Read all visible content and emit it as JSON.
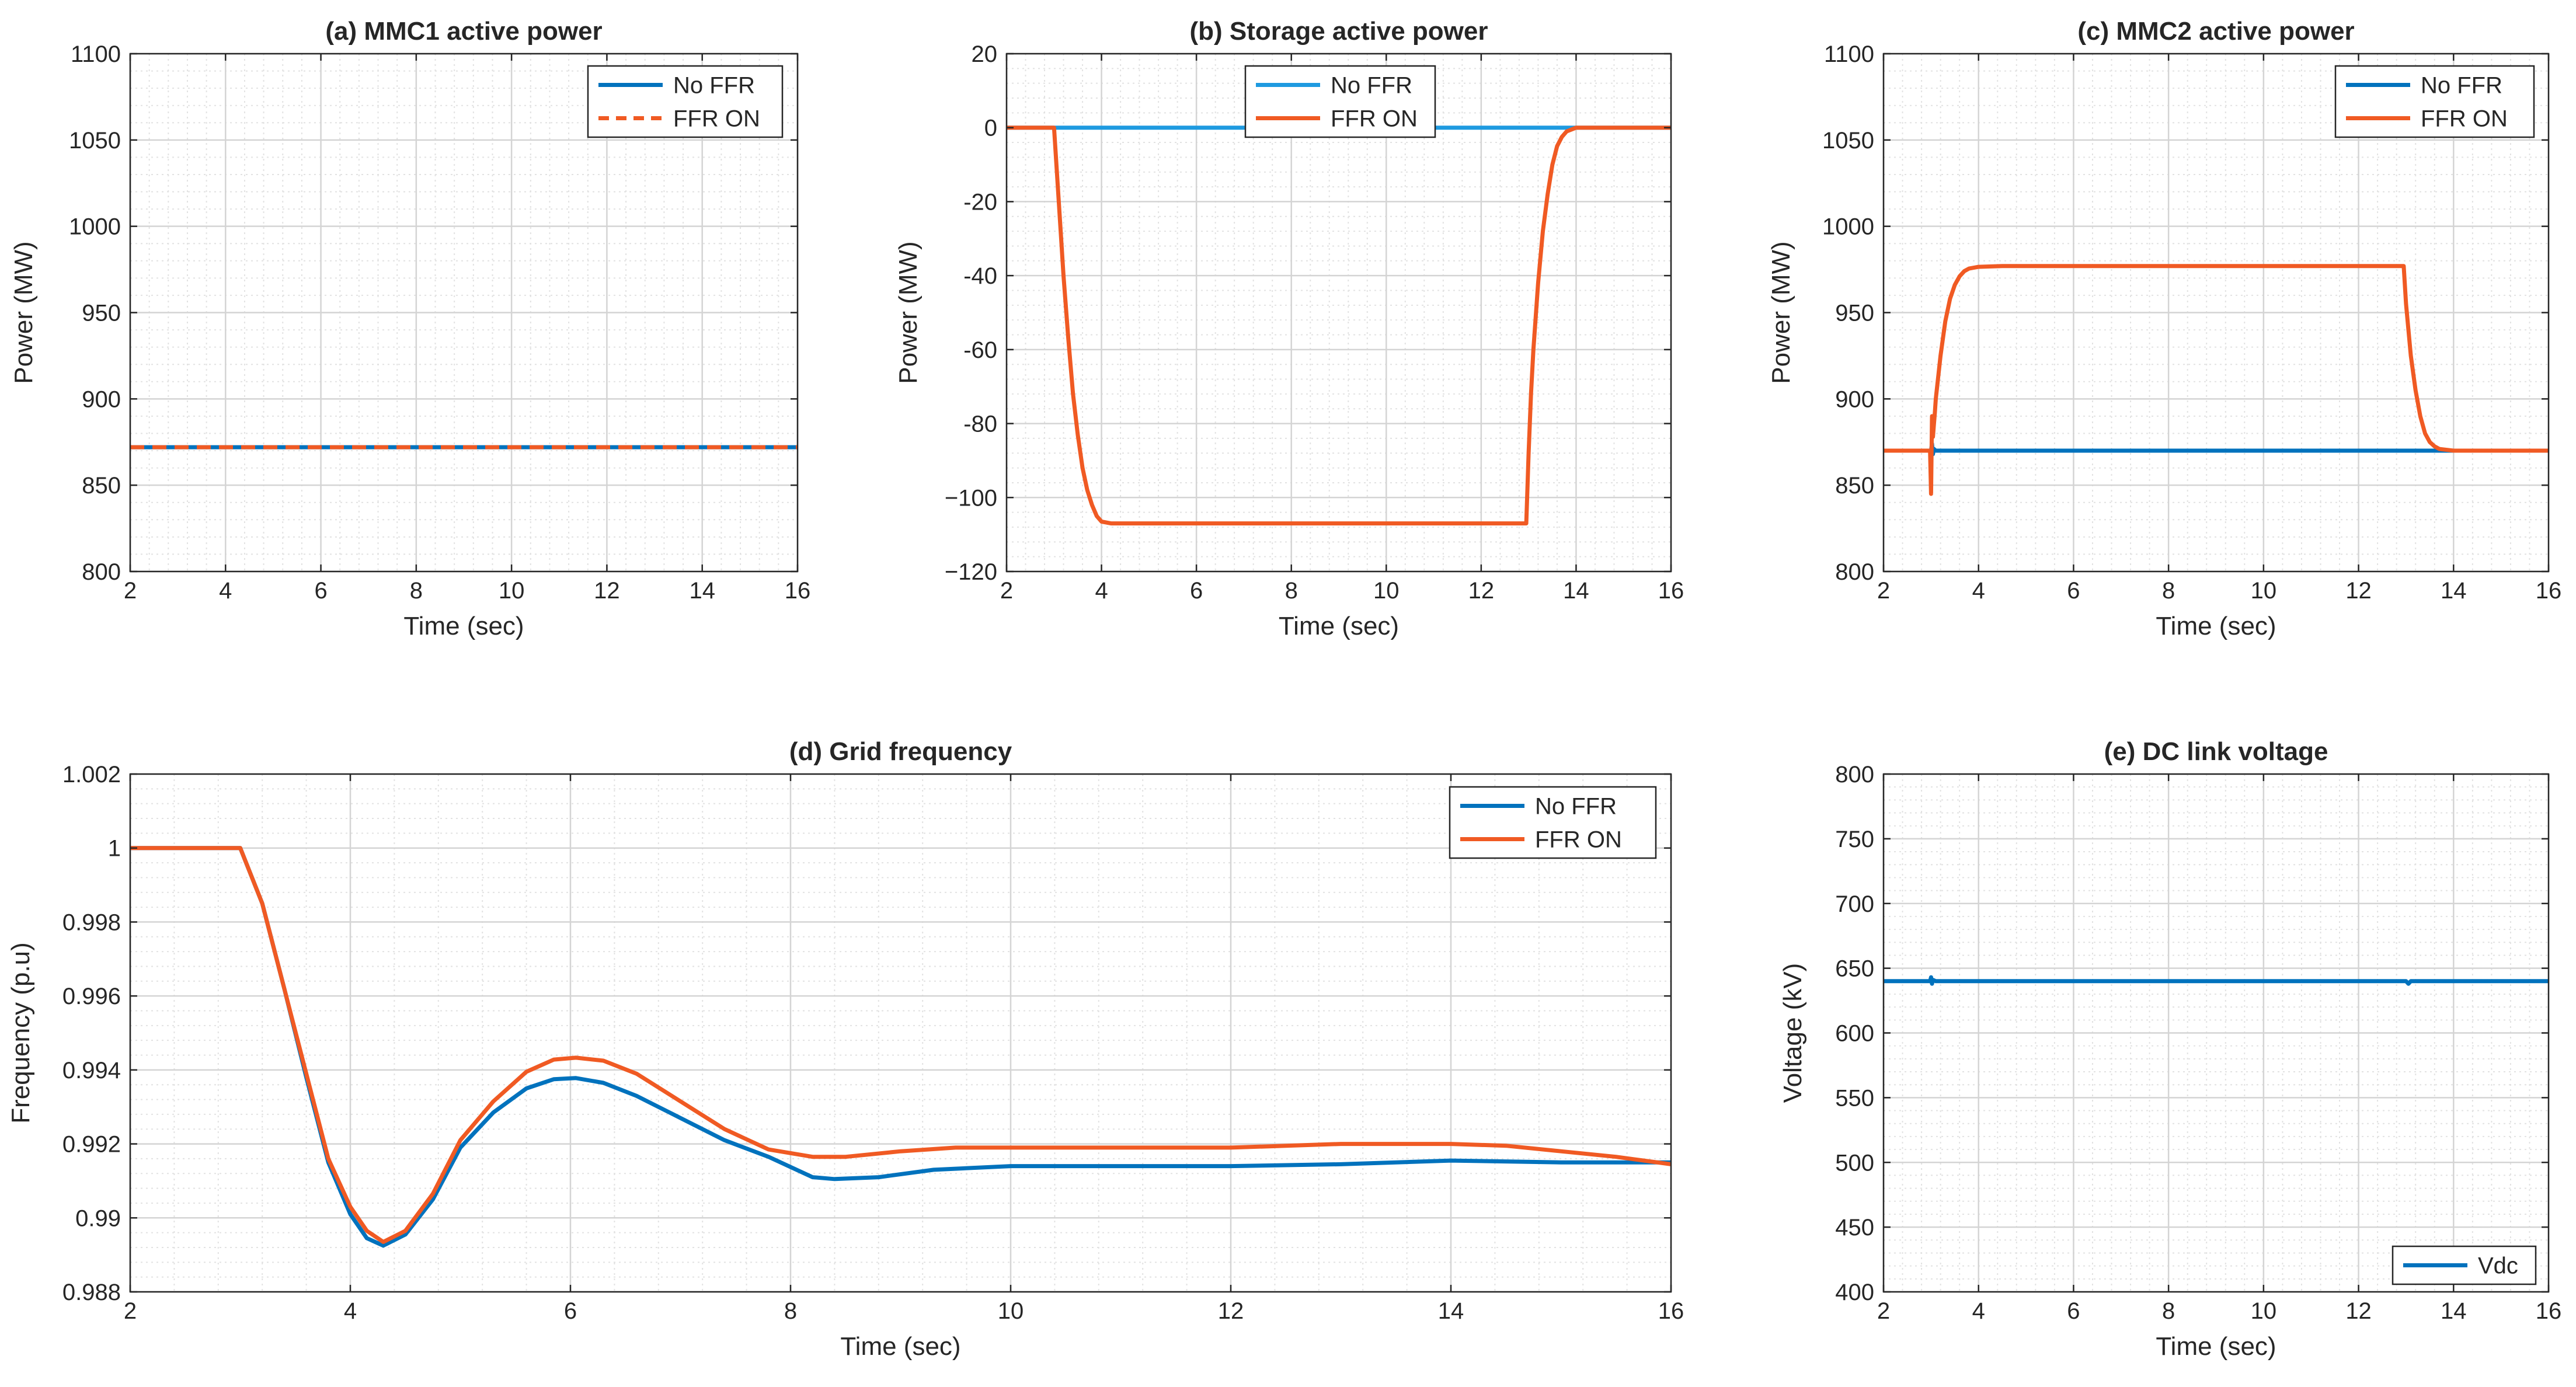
{
  "chart_data": [
    {
      "id": "a",
      "type": "line",
      "title": "(a) MMC1 active power",
      "xlabel": "Time (sec)",
      "ylabel": "Power (MW)",
      "xlim": [
        2,
        16
      ],
      "ylim": [
        800,
        1100
      ],
      "xticks": [
        2,
        4,
        6,
        8,
        10,
        12,
        14,
        16
      ],
      "yticks": [
        800,
        850,
        900,
        950,
        1000,
        1050,
        1100
      ],
      "xtick_labels": [
        "2",
        "4",
        "6",
        "8",
        "10",
        "12",
        "14",
        "16"
      ],
      "ytick_labels": [
        "800",
        "850",
        "900",
        "950",
        "1000",
        "1050",
        "1100"
      ],
      "grid": "on",
      "legend": "top-right",
      "series": [
        {
          "name": "No FFR",
          "color": "#0072BD",
          "style": "solid",
          "x": [
            2,
            16
          ],
          "y": [
            872,
            872
          ]
        },
        {
          "name": "FFR ON",
          "color": "#F05A23",
          "style": "dashed",
          "x": [
            2,
            16
          ],
          "y": [
            872,
            872
          ]
        }
      ]
    },
    {
      "id": "b",
      "type": "line",
      "title": "(b) Storage active power",
      "xlabel": "Time (sec)",
      "ylabel": "Power (MW)",
      "xlim": [
        2,
        16
      ],
      "ylim": [
        -120,
        20
      ],
      "xticks": [
        2,
        4,
        6,
        8,
        10,
        12,
        14,
        16
      ],
      "yticks": [
        -120,
        -100,
        -80,
        -60,
        -40,
        -20,
        0,
        20
      ],
      "xtick_labels": [
        "2",
        "4",
        "6",
        "8",
        "10",
        "12",
        "14",
        "16"
      ],
      "ytick_labels": [
        "−120",
        "−100",
        "-80",
        "-60",
        "-40",
        "-20",
        "0",
        "20"
      ],
      "grid": "on",
      "legend": "top-center",
      "series": [
        {
          "name": "No FFR",
          "color": "#1E9AE0",
          "style": "solid",
          "x": [
            2,
            16
          ],
          "y": [
            0,
            0
          ]
        },
        {
          "name": "FFR ON",
          "color": "#F05A23",
          "style": "solid",
          "x": [
            2,
            3.0,
            3.1,
            3.2,
            3.3,
            3.4,
            3.5,
            3.6,
            3.7,
            3.8,
            3.9,
            4.0,
            4.2,
            4.5,
            5,
            8,
            12.95,
            13.0,
            13.05,
            13.1,
            13.2,
            13.3,
            13.4,
            13.5,
            13.6,
            13.7,
            13.8,
            14.0,
            14.5,
            16
          ],
          "y": [
            0,
            0,
            -20,
            -40,
            -57,
            -72,
            -83,
            -92,
            -98,
            -102,
            -105,
            -106.5,
            -107,
            -107,
            -107,
            -107,
            -107,
            -88,
            -72,
            -60,
            -42,
            -28,
            -18,
            -10,
            -5,
            -2.5,
            -1,
            0,
            0,
            0
          ]
        }
      ]
    },
    {
      "id": "c",
      "type": "line",
      "title": "(c) MMC2 active power",
      "xlabel": "Time (sec)",
      "ylabel": "Power (MW)",
      "xlim": [
        2,
        16
      ],
      "ylim": [
        800,
        1100
      ],
      "xticks": [
        2,
        4,
        6,
        8,
        10,
        12,
        14,
        16
      ],
      "yticks": [
        800,
        850,
        900,
        950,
        1000,
        1050,
        1100
      ],
      "xtick_labels": [
        "2",
        "4",
        "6",
        "8",
        "10",
        "12",
        "14",
        "16"
      ],
      "ytick_labels": [
        "800",
        "850",
        "900",
        "950",
        "1000",
        "1050",
        "1100"
      ],
      "grid": "on",
      "legend": "top-right",
      "series": [
        {
          "name": "No FFR",
          "color": "#0072BD",
          "style": "solid",
          "x": [
            2,
            3.0,
            3.02,
            3.04,
            3.06,
            3.1,
            16
          ],
          "y": [
            870,
            870,
            874,
            868,
            871,
            870,
            870
          ]
        },
        {
          "name": "FFR ON",
          "color": "#F05A23",
          "style": "solid",
          "x": [
            2,
            2.98,
            3.0,
            3.02,
            3.04,
            3.06,
            3.08,
            3.1,
            3.2,
            3.3,
            3.4,
            3.5,
            3.6,
            3.7,
            3.8,
            4.0,
            4.5,
            8,
            12.95,
            13.0,
            13.05,
            13.1,
            13.2,
            13.3,
            13.4,
            13.5,
            13.6,
            13.7,
            14.0,
            16
          ],
          "y": [
            870,
            870,
            845,
            890,
            878,
            885,
            892,
            900,
            925,
            945,
            958,
            966,
            971,
            974,
            975.5,
            976.5,
            977,
            977,
            977,
            955,
            940,
            925,
            905,
            890,
            880,
            875,
            872.5,
            871,
            870,
            870
          ]
        }
      ]
    },
    {
      "id": "d",
      "type": "line",
      "title": "(d) Grid frequency",
      "xlabel": "Time (sec)",
      "ylabel": "Frequency (p.u)",
      "xlim": [
        2,
        16
      ],
      "ylim": [
        0.988,
        1.002
      ],
      "xticks": [
        2,
        4,
        6,
        8,
        10,
        12,
        14,
        16
      ],
      "yticks": [
        0.988,
        0.99,
        0.992,
        0.994,
        0.996,
        0.998,
        1.0,
        1.002
      ],
      "xtick_labels": [
        "2",
        "4",
        "6",
        "8",
        "10",
        "12",
        "14",
        "16"
      ],
      "ytick_labels": [
        "0.988",
        "0.99",
        "0.992",
        "0.994",
        "0.996",
        "0.998",
        "1",
        "1.002"
      ],
      "grid": "on",
      "legend": "top-right",
      "series": [
        {
          "name": "No FFR",
          "color": "#0072BD",
          "style": "solid",
          "x": [
            2,
            2.9,
            3.0,
            3.2,
            3.4,
            3.6,
            3.8,
            4.0,
            4.15,
            4.3,
            4.5,
            4.75,
            5.0,
            5.3,
            5.6,
            5.85,
            6.05,
            6.3,
            6.6,
            7.0,
            7.4,
            7.8,
            8.2,
            8.4,
            8.8,
            9.3,
            10,
            11,
            12,
            13,
            14,
            15,
            16
          ],
          "y": [
            1.0,
            1.0,
            1.0,
            0.9985,
            0.9962,
            0.9938,
            0.9915,
            0.9901,
            0.98945,
            0.98925,
            0.98955,
            0.9905,
            0.9919,
            0.99285,
            0.9935,
            0.99375,
            0.99378,
            0.99365,
            0.9933,
            0.9927,
            0.9921,
            0.99165,
            0.9911,
            0.99105,
            0.9911,
            0.9913,
            0.9914,
            0.9914,
            0.9914,
            0.99145,
            0.99155,
            0.9915,
            0.9915
          ]
        },
        {
          "name": "FFR ON",
          "color": "#F05A23",
          "style": "solid",
          "x": [
            2,
            2.9,
            3.0,
            3.2,
            3.4,
            3.6,
            3.8,
            4.0,
            4.15,
            4.3,
            4.5,
            4.75,
            5.0,
            5.3,
            5.6,
            5.85,
            6.05,
            6.3,
            6.6,
            7.0,
            7.4,
            7.8,
            8.2,
            8.5,
            9.0,
            9.5,
            10,
            11,
            12,
            13,
            13.5,
            14,
            14.5,
            15,
            15.5,
            16
          ],
          "y": [
            1.0,
            1.0,
            1.0,
            0.9985,
            0.9962,
            0.9939,
            0.9916,
            0.9903,
            0.98965,
            0.98935,
            0.98965,
            0.99065,
            0.9921,
            0.99315,
            0.99395,
            0.99428,
            0.99433,
            0.99425,
            0.9939,
            0.99315,
            0.9924,
            0.99185,
            0.99165,
            0.99165,
            0.9918,
            0.9919,
            0.9919,
            0.9919,
            0.9919,
            0.992,
            0.992,
            0.992,
            0.99195,
            0.9918,
            0.99165,
            0.99145
          ]
        }
      ]
    },
    {
      "id": "e",
      "type": "line",
      "title": "(e) DC link voltage",
      "xlabel": "Time (sec)",
      "ylabel": "Voltage (kV)",
      "xlim": [
        2,
        16
      ],
      "ylim": [
        400,
        800
      ],
      "xticks": [
        2,
        4,
        6,
        8,
        10,
        12,
        14,
        16
      ],
      "yticks": [
        400,
        450,
        500,
        550,
        600,
        650,
        700,
        750,
        800
      ],
      "xtick_labels": [
        "2",
        "4",
        "6",
        "8",
        "10",
        "12",
        "14",
        "16"
      ],
      "ytick_labels": [
        "400",
        "450",
        "500",
        "550",
        "600",
        "650",
        "700",
        "750",
        "800"
      ],
      "grid": "on",
      "legend": "bottom-right",
      "series": [
        {
          "name": "Vdc",
          "color": "#0072BD",
          "style": "solid",
          "x": [
            2,
            2.98,
            3.0,
            3.02,
            3.04,
            3.1,
            13.0,
            13.05,
            13.1,
            16
          ],
          "y": [
            640,
            640,
            643,
            638,
            641,
            640,
            640,
            638,
            640,
            640
          ]
        }
      ]
    }
  ]
}
